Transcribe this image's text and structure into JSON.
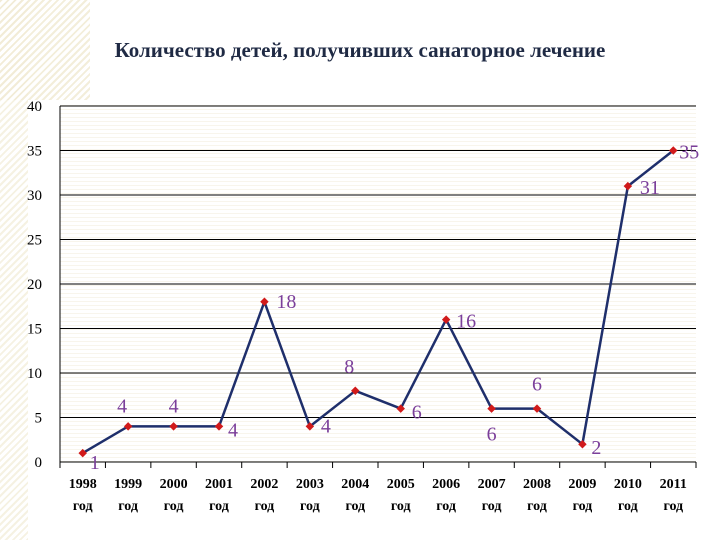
{
  "chart_data": {
    "type": "line",
    "title": "Количество детей, получивших санаторное лечение",
    "x": [
      "1998 год",
      "1999 год",
      "2000 год",
      "2001 год",
      "2002 год",
      "2003 год",
      "2004 год",
      "2005 год",
      "2006 год",
      "2007 год",
      "2008 год",
      "2009 год",
      "2010 год",
      "2011 год"
    ],
    "x_years": [
      "1998",
      "1999",
      "2000",
      "2001",
      "2002",
      "2003",
      "2004",
      "2005",
      "2006",
      "2007",
      "2008",
      "2009",
      "2010",
      "2011"
    ],
    "x_suffix": "год",
    "series": [
      {
        "values": [
          1,
          4,
          4,
          4,
          18,
          4,
          8,
          6,
          16,
          6,
          6,
          2,
          31,
          35
        ]
      }
    ],
    "data_labels": [
      "1",
      "4",
      "4",
      "4",
      "18",
      "4",
      "8",
      "6",
      "16",
      "6",
      "6",
      "2",
      "31",
      "35"
    ],
    "y_ticks": [
      "0",
      "5",
      "10",
      "15",
      "20",
      "25",
      "30",
      "35",
      "40"
    ],
    "ylim": [
      0,
      40
    ],
    "grid": true,
    "legend": "none",
    "colors": {
      "line": "#1f2f6b",
      "marker": "#d11a1a",
      "label": "#7b3f9a",
      "grid": "#000000"
    }
  }
}
